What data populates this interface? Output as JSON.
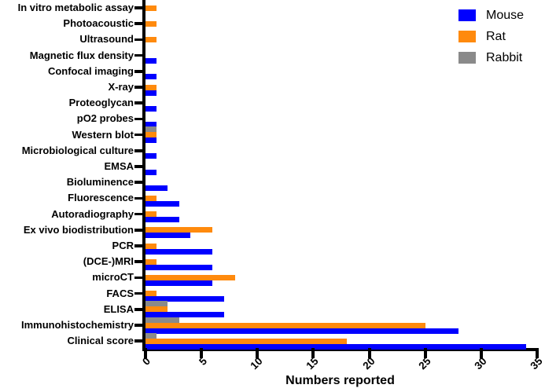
{
  "figure": {
    "background": "#FFFFFF",
    "text_color": "#000000",
    "axis_color": "#000000"
  },
  "chart_data": {
    "type": "bar",
    "orientation": "horizontal",
    "title": "",
    "xlabel": "Numbers reported",
    "ylabel": "",
    "xlim": [
      0,
      35
    ],
    "xticks": [
      0,
      5,
      10,
      15,
      20,
      25,
      30,
      35
    ],
    "grid": false,
    "legend_position": "top-right",
    "categories": [
      "In vitro metabolic assay",
      "Photoacoustic",
      "Ultrasound",
      "Magnetic flux density",
      "Confocal imaging",
      "X-ray",
      "Proteoglycan",
      "pO2 probes",
      "Western blot",
      "Microbiological culture",
      "EMSA",
      "Bioluminence",
      "Fluorescence",
      "Autoradiography",
      "Ex vivo biodistribution",
      "PCR",
      "(DCE-)MRI",
      "microCT",
      "FACS",
      "ELISA",
      "Immunohistochemistry",
      "Clinical score"
    ],
    "series": [
      {
        "name": "Mouse",
        "color": "#0000FF",
        "values": [
          0,
          0,
          0,
          1,
          1,
          1,
          1,
          1,
          1,
          1,
          1,
          2,
          3,
          3,
          4,
          6,
          6,
          6,
          7,
          7,
          28,
          34
        ]
      },
      {
        "name": "Rat",
        "color": "#FF8A0D",
        "values": [
          1,
          1,
          1,
          0,
          0,
          1,
          0,
          0,
          1,
          0,
          0,
          0,
          1,
          1,
          6,
          1,
          1,
          8,
          1,
          2,
          25,
          18
        ]
      },
      {
        "name": "Rabbit",
        "color": "#8A8A8A",
        "values": [
          0,
          0,
          0,
          0,
          0,
          0,
          0,
          0,
          1,
          0,
          0,
          0,
          0,
          0,
          0,
          0,
          0,
          0,
          0,
          2,
          3,
          1
        ]
      }
    ]
  }
}
